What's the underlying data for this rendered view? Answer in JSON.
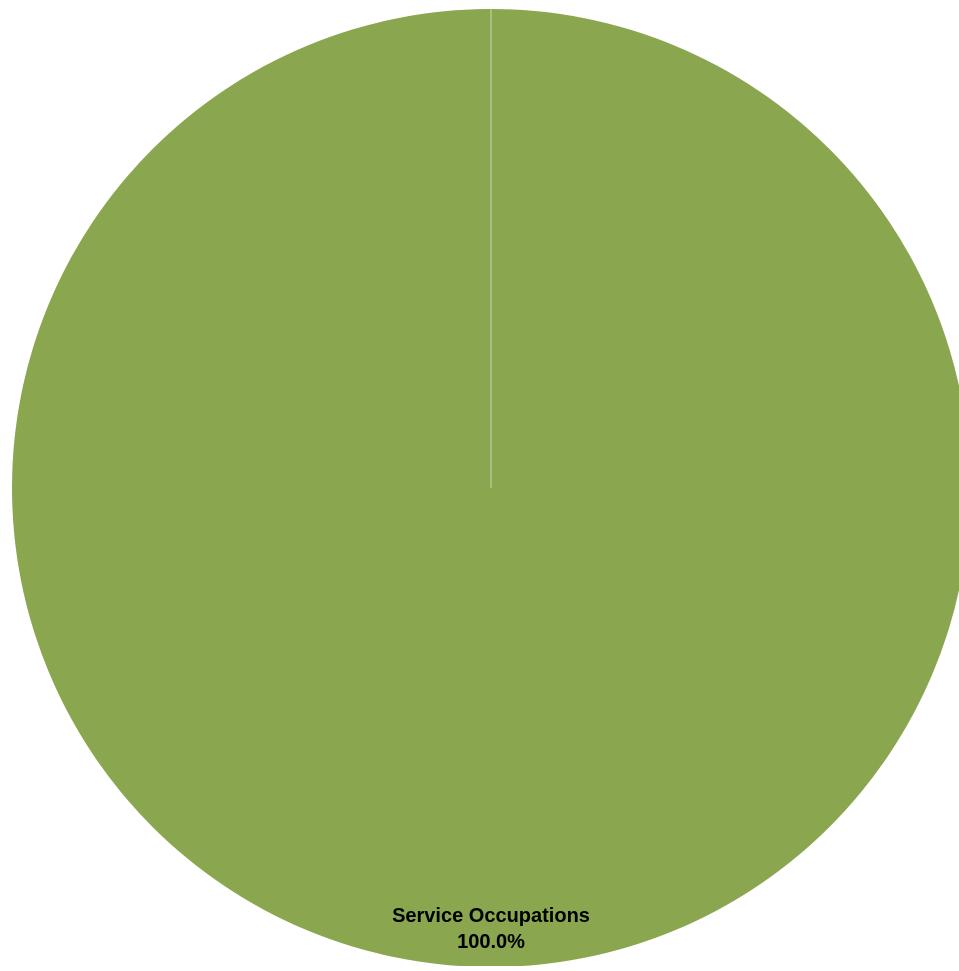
{
  "chart_data": {
    "type": "pie",
    "title": "",
    "slices": [
      {
        "label": "Service Occupations",
        "value": 100.0,
        "value_label": "100.0%",
        "color": "#8aa64f"
      }
    ],
    "separator_color": "#ffffff",
    "legend": "none"
  }
}
